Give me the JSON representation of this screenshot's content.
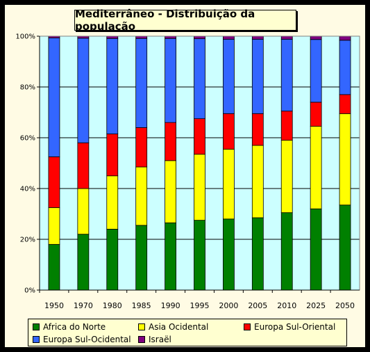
{
  "chart_data": {
    "type": "bar",
    "stacked": true,
    "percent": true,
    "title": "Mediterrâneo - Distribuição da população",
    "categories": [
      "1950",
      "1970",
      "1980",
      "1985",
      "1990",
      "1995",
      "2000",
      "2005",
      "2010",
      "2025",
      "2050"
    ],
    "y_ticks": [
      "0%",
      "20%",
      "40%",
      "60%",
      "80%",
      "100%"
    ],
    "ylim": [
      0,
      100
    ],
    "grid": true,
    "legend_position": "bottom",
    "series": [
      {
        "name": "Africa do Norte",
        "color": "#008000",
        "values": [
          18,
          22,
          24,
          25.5,
          26.5,
          27.5,
          28,
          28.5,
          30.5,
          32,
          33.5
        ]
      },
      {
        "name": "Asia Ocidental",
        "color": "#ffff00",
        "values": [
          14.5,
          18,
          21,
          23,
          24.5,
          26,
          27.5,
          28.5,
          28.5,
          32.5,
          36
        ]
      },
      {
        "name": "Europa Sul-Oriental",
        "color": "#ff0000",
        "values": [
          20,
          18,
          16.5,
          15.5,
          15,
          14,
          14,
          12.5,
          11.5,
          9.5,
          7.5
        ]
      },
      {
        "name": "Europa Sul-Ocidental",
        "color": "#3366ff",
        "values": [
          46.8,
          41.2,
          37.6,
          35.1,
          33.1,
          31.5,
          29.3,
          29.3,
          28.3,
          24.7,
          21.4
        ]
      },
      {
        "name": "Israël",
        "color": "#800080",
        "values": [
          0.7,
          0.8,
          0.9,
          0.9,
          0.9,
          1.0,
          1.2,
          1.2,
          1.2,
          1.3,
          1.6
        ]
      }
    ]
  }
}
